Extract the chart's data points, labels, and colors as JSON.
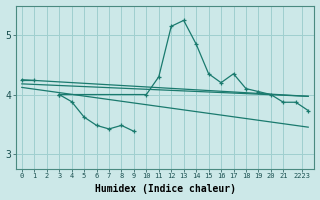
{
  "xlabel": "Humidex (Indice chaleur)",
  "bg_color": "#cce8e8",
  "grid_color": "#9fcfcf",
  "line_color": "#1a7a6e",
  "xlim": [
    -0.5,
    23.5
  ],
  "ylim": [
    2.75,
    5.5
  ],
  "yticks": [
    3,
    4,
    5
  ],
  "xtick_labels": [
    "0",
    "1",
    "2",
    "3",
    "4",
    "5",
    "6",
    "7",
    "8",
    "9",
    "10",
    "11",
    "12",
    "13",
    "14",
    "15",
    "16",
    "17",
    "18",
    "19",
    "20",
    "21",
    "2223"
  ],
  "xtick_pos": [
    0,
    1,
    2,
    3,
    4,
    5,
    6,
    7,
    8,
    9,
    10,
    11,
    12,
    13,
    14,
    15,
    16,
    17,
    18,
    19,
    20,
    21,
    22.5
  ],
  "main_line_x": [
    0,
    1,
    3,
    10,
    11,
    12,
    13,
    14,
    15,
    16,
    17,
    18,
    19,
    20,
    21,
    22,
    23
  ],
  "main_line_y": [
    4.25,
    4.25,
    4.0,
    4.0,
    4.3,
    5.15,
    5.25,
    4.85,
    4.35,
    4.2,
    4.35,
    4.1,
    4.05,
    4.0,
    3.87,
    3.87,
    3.73
  ],
  "short_line_x": [
    3,
    4,
    5,
    6,
    7,
    8,
    9
  ],
  "short_line_y": [
    4.0,
    3.88,
    3.62,
    3.48,
    3.42,
    3.48,
    3.38
  ],
  "trend1_x": [
    0,
    23
  ],
  "trend1_y": [
    4.25,
    3.97
  ],
  "trend2_x": [
    0,
    23
  ],
  "trend2_y": [
    4.18,
    3.97
  ],
  "trend3_x": [
    0,
    23
  ],
  "trend3_y": [
    4.12,
    3.45
  ]
}
